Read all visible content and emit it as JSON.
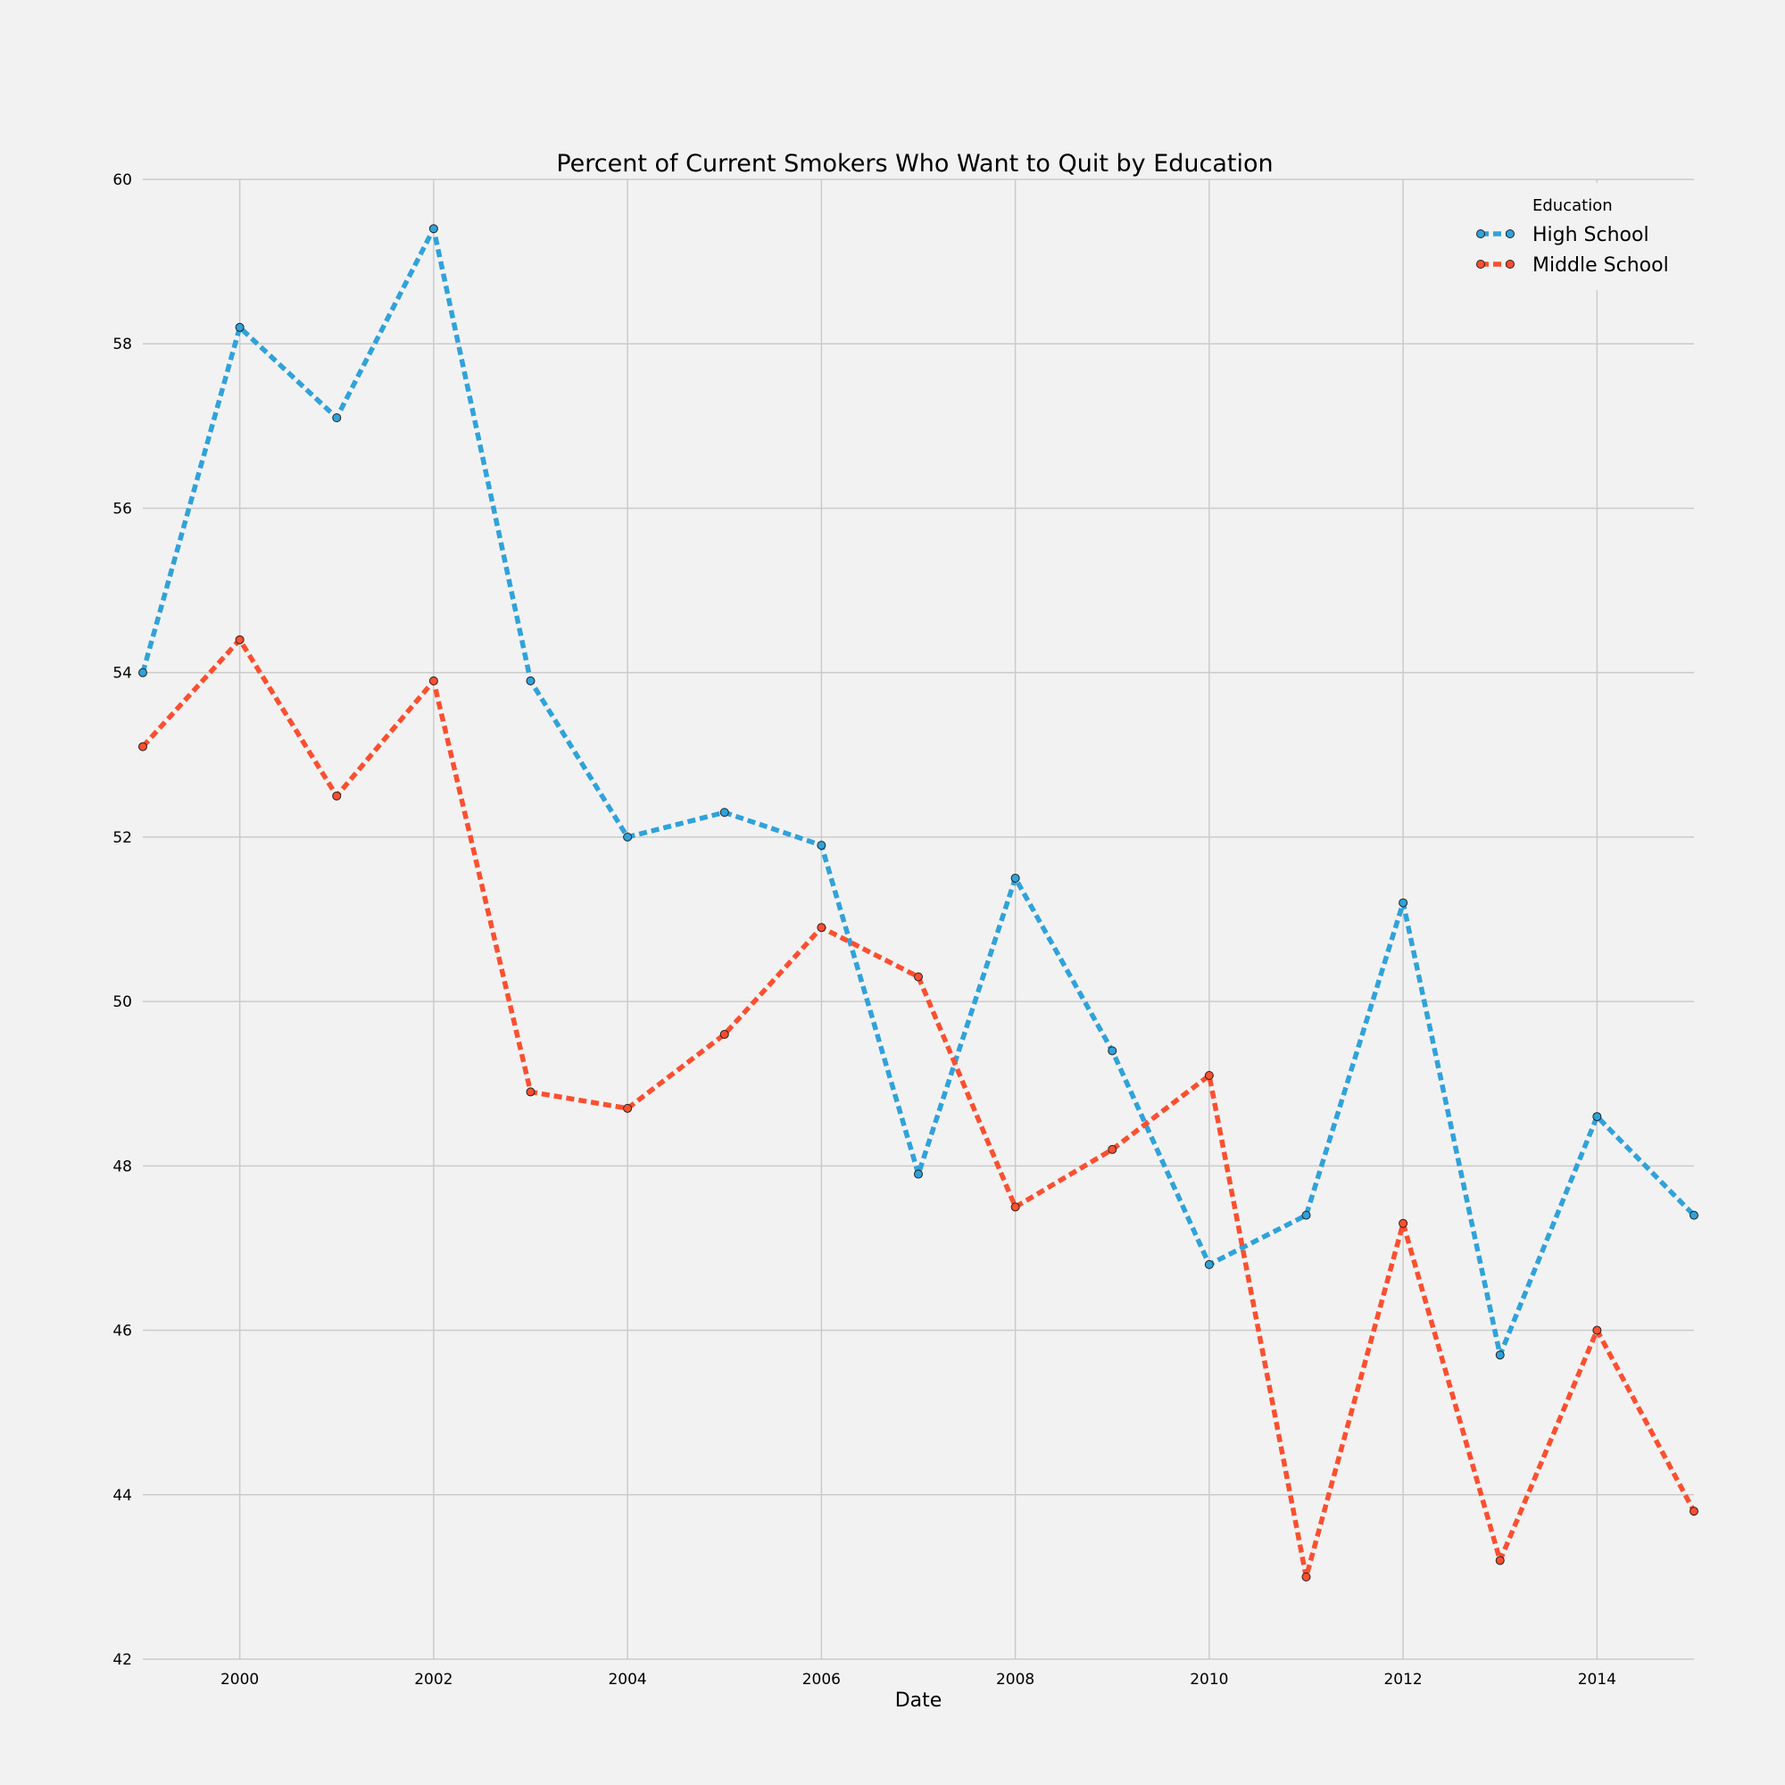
{
  "chart_data": {
    "type": "line",
    "title": "Percent of Current Smokers Who Want to Quit by Education",
    "xlabel": "Date",
    "ylabel": "",
    "x": [
      1999,
      2000,
      2001,
      2002,
      2003,
      2004,
      2005,
      2006,
      2007,
      2008,
      2009,
      2010,
      2011,
      2012,
      2013,
      2014,
      2015
    ],
    "xlim": [
      1999,
      2015
    ],
    "ylim": [
      42,
      60
    ],
    "xticks": [
      "2000",
      "2002",
      "2004",
      "2006",
      "2008",
      "2010",
      "2012",
      "2014"
    ],
    "yticks": [
      "42",
      "44",
      "46",
      "48",
      "50",
      "52",
      "54",
      "56",
      "58",
      "60"
    ],
    "grid": true,
    "legend": {
      "title": "Education",
      "position": "top-right"
    },
    "series": [
      {
        "name": "High School",
        "color": "#30a2da",
        "values": [
          54.0,
          58.2,
          57.1,
          59.4,
          53.9,
          52.0,
          52.3,
          51.9,
          47.9,
          51.5,
          49.4,
          46.8,
          47.4,
          51.2,
          45.7,
          48.6,
          47.4
        ]
      },
      {
        "name": "Middle School",
        "color": "#fc4f30",
        "values": [
          53.1,
          54.4,
          52.5,
          53.9,
          48.9,
          48.7,
          49.6,
          50.9,
          50.3,
          47.5,
          48.2,
          49.1,
          43.0,
          47.3,
          43.2,
          46.0,
          43.8
        ]
      }
    ]
  }
}
